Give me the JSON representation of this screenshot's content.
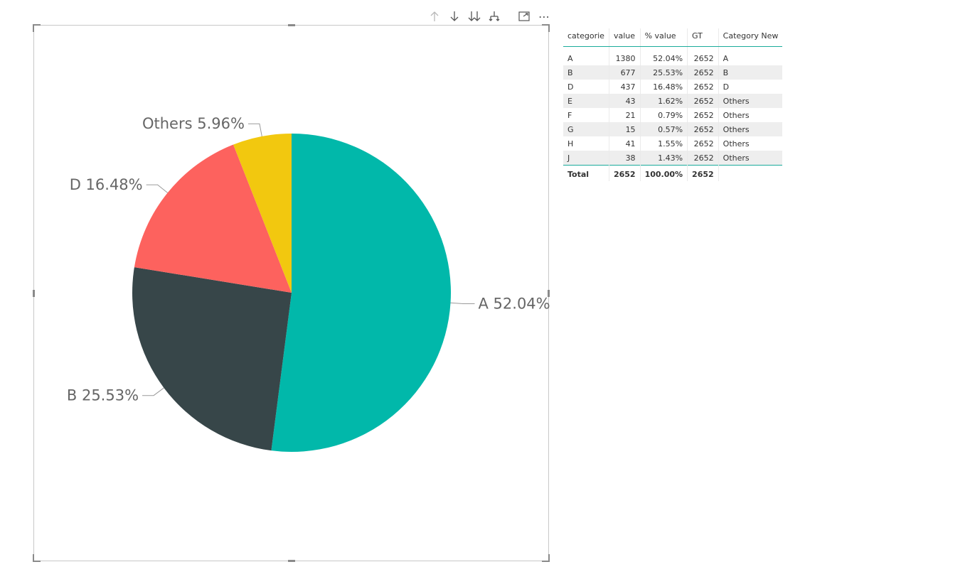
{
  "toolbar": {
    "icons": [
      "arrow-up-icon",
      "arrow-down-icon",
      "double-arrow-down-icon",
      "expand-hierarchy-icon",
      "focus-mode-icon",
      "more-options-icon"
    ],
    "more_label": "⋯"
  },
  "chart_data": {
    "type": "pie",
    "slices": [
      {
        "label": "A",
        "percent": 52.04,
        "display": "A 52.04%",
        "color": "#01B8AA"
      },
      {
        "label": "B",
        "percent": 25.53,
        "display": "B 25.53%",
        "color": "#374649"
      },
      {
        "label": "D",
        "percent": 16.48,
        "display": "D 16.48%",
        "color": "#FD625E"
      },
      {
        "label": "Others",
        "percent": 5.96,
        "display": "Others 5.96%",
        "color": "#F2C80F"
      }
    ]
  },
  "table": {
    "headers": [
      "categorie",
      "value",
      "% value",
      "GT",
      "Category New"
    ],
    "rows": [
      [
        "A",
        "1380",
        "52.04%",
        "2652",
        "A"
      ],
      [
        "B",
        "677",
        "25.53%",
        "2652",
        "B"
      ],
      [
        "D",
        "437",
        "16.48%",
        "2652",
        "D"
      ],
      [
        "E",
        "43",
        "1.62%",
        "2652",
        "Others"
      ],
      [
        "F",
        "21",
        "0.79%",
        "2652",
        "Others"
      ],
      [
        "G",
        "15",
        "0.57%",
        "2652",
        "Others"
      ],
      [
        "H",
        "41",
        "1.55%",
        "2652",
        "Others"
      ],
      [
        "J",
        "38",
        "1.43%",
        "2652",
        "Others"
      ]
    ],
    "total": [
      "Total",
      "2652",
      "100.00%",
      "2652",
      ""
    ]
  }
}
